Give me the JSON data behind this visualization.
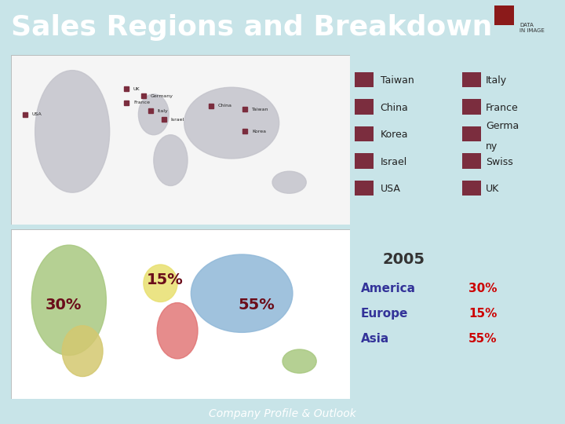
{
  "title": "Sales Regions and Breakdown",
  "title_color": "#FFFFFF",
  "title_bg_color": "#3AACAA",
  "bg_color": "#C8E4E8",
  "legend_items_col1": [
    "Taiwan",
    "China",
    "Korea",
    "Israel",
    "USA"
  ],
  "legend_items_col2": [
    "Italy",
    "France",
    "Germany",
    "Swiss",
    "UK"
  ],
  "legend_color": "#7B2D3E",
  "footer_text": "Company Profile & Outlook",
  "footer_bg": "#3AACAA",
  "footer_color": "#FFFFFF",
  "pct_color": "#6B0D1A",
  "map_top_bg": "#F0F0F0",
  "map_bot_bg": "#FFFFFF",
  "continent_gray": "#C4C4CC",
  "americas_color": "#A8C880",
  "s_america_color": "#D4C870",
  "europe_color": "#E8E070",
  "africa_color": "#E07070",
  "asia_color": "#90B8D8",
  "australia_color": "#A8C880",
  "stats_2005_color": "#333333",
  "stats_label_color": "#333399",
  "stats_pct_color": "#CC0000"
}
